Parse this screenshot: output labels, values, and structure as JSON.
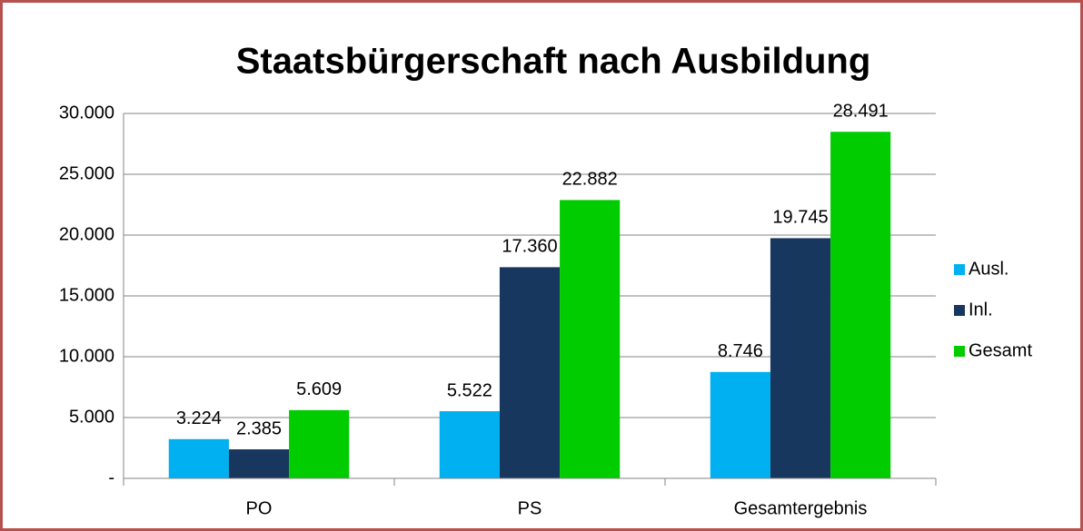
{
  "chart_data": {
    "type": "bar",
    "title": "Staatsbürgerschaft nach Ausbildung",
    "categories": [
      "PO",
      "PS",
      "Gesamtergebnis"
    ],
    "series": [
      {
        "name": "Ausl.",
        "color": "#00b0f0",
        "values": [
          3224,
          5522,
          8746
        ],
        "value_labels": [
          "3.224",
          "5.522",
          "8.746"
        ]
      },
      {
        "name": "Inl.",
        "color": "#17375e",
        "values": [
          2385,
          17360,
          19745
        ],
        "value_labels": [
          "2.385",
          "17.360",
          "19.745"
        ]
      },
      {
        "name": "Gesamt",
        "color": "#00cc00",
        "values": [
          5609,
          22882,
          28491
        ],
        "value_labels": [
          "5.609",
          "22.882",
          "28.491"
        ]
      }
    ],
    "ylim": [
      0,
      30000
    ],
    "yticks": [
      {
        "value": 0,
        "label": "-"
      },
      {
        "value": 5000,
        "label": "5.000"
      },
      {
        "value": 10000,
        "label": "10.000"
      },
      {
        "value": 15000,
        "label": "15.000"
      },
      {
        "value": 20000,
        "label": "20.000"
      },
      {
        "value": 25000,
        "label": "25.000"
      },
      {
        "value": 30000,
        "label": "30.000"
      }
    ],
    "grid": true,
    "legend": "right"
  }
}
